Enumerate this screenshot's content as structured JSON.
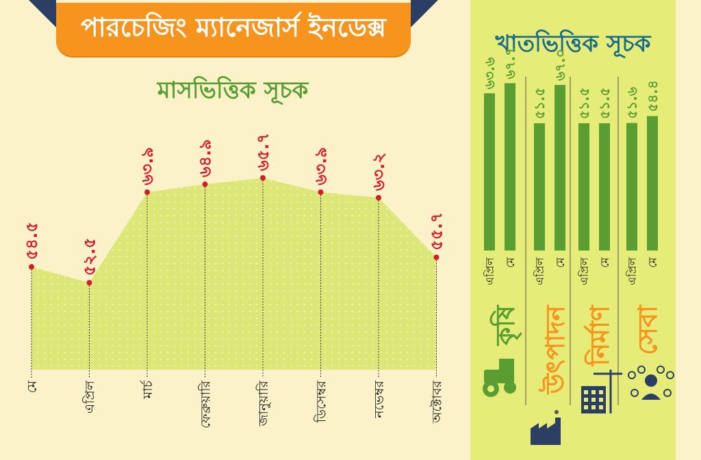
{
  "header": {
    "title": "পারচেজিং ম্যানেজার্স ইনডেক্স"
  },
  "left": {
    "subtitle": "মাসভিত্তিক সূচক"
  },
  "right": {
    "subtitle": "খাতভিত্তিক সূচক"
  },
  "colors": {
    "orange": "#f7941d",
    "navy": "#2b3e63",
    "green": "#5a9e33",
    "red": "#d7192a",
    "area": "#dce778",
    "blue": "#1b6b8a",
    "panel": "#e6ec78"
  },
  "chart_data": [
    {
      "type": "area",
      "title": "মাসভিত্তিক সূচক",
      "categories": [
        "মে",
        "এপ্রিল",
        "মার্চ",
        "ফেব্রুয়ারি",
        "জানুয়ারি",
        "ডিসেম্বর",
        "নভেম্বর",
        "অক্টোবর"
      ],
      "values": [
        54.5,
        52.5,
        63.9,
        64.9,
        65.7,
        63.9,
        63.2,
        55.7
      ],
      "labels": [
        "৫৪.৫",
        "৫২.৫",
        "৬৩.৯",
        "৬৪.৯",
        "৬৫.৭",
        "৬৩.৯",
        "৬৩.২",
        "৫৫.৭"
      ],
      "ylim": [
        40,
        70
      ]
    },
    {
      "type": "bar",
      "title": "খাতভিত্তিক সূচক",
      "categories": [
        "কৃষি",
        "উৎপাদন",
        "নির্মাণ",
        "সেবা"
      ],
      "icons": [
        "tractor-icon",
        "factory-icon",
        "building-crane-icon",
        "service-people-icon"
      ],
      "series": [
        {
          "name": "এপ্রিল",
          "values": [
            63.6,
            51.5,
            51.5,
            51.6
          ],
          "labels": [
            "৬৩.৬",
            "৫১.৫",
            "৫১.৫",
            "৫১.৬"
          ]
        },
        {
          "name": "মে",
          "values": [
            67.7,
            67.0,
            51.5,
            54.4
          ],
          "labels": [
            "৬৭.৭",
            "৬৭.০",
            "৫১.৫",
            "৫৪.৪"
          ]
        }
      ]
    }
  ]
}
